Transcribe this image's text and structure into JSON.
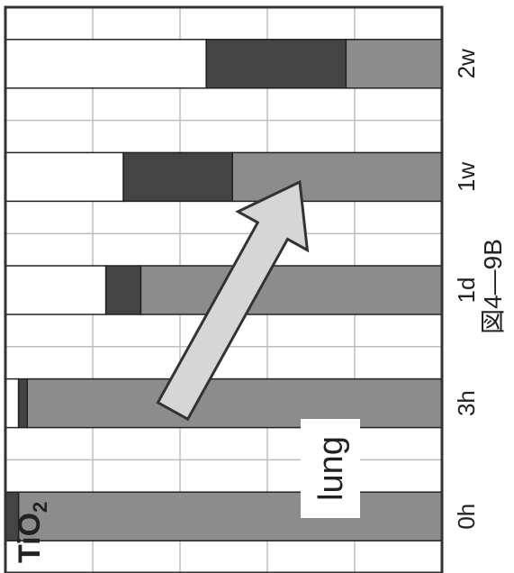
{
  "chart_data": {
    "type": "bar",
    "stacked": true,
    "orientation": "horizontal-bars-rotated",
    "categories": [
      "0h",
      "3h",
      "1d",
      "1w",
      "2w"
    ],
    "series": [
      {
        "values": [
          97,
          95,
          69,
          48,
          22
        ],
        "color": "#8c8c8c"
      },
      {
        "values": [
          3,
          2,
          8,
          25,
          32
        ],
        "color": "#444444"
      },
      {
        "values": [
          0,
          3,
          23,
          27,
          46
        ],
        "color": "#ffffff"
      }
    ],
    "ylim": [
      0,
      100
    ],
    "grid": true,
    "title": "",
    "xlabel": "",
    "ylabel": "",
    "series_label": "TiO",
    "series_label_sub": "2",
    "annotation": "lung",
    "figure_label": "図4—9B",
    "arrow_color": "#d6d6d6"
  }
}
